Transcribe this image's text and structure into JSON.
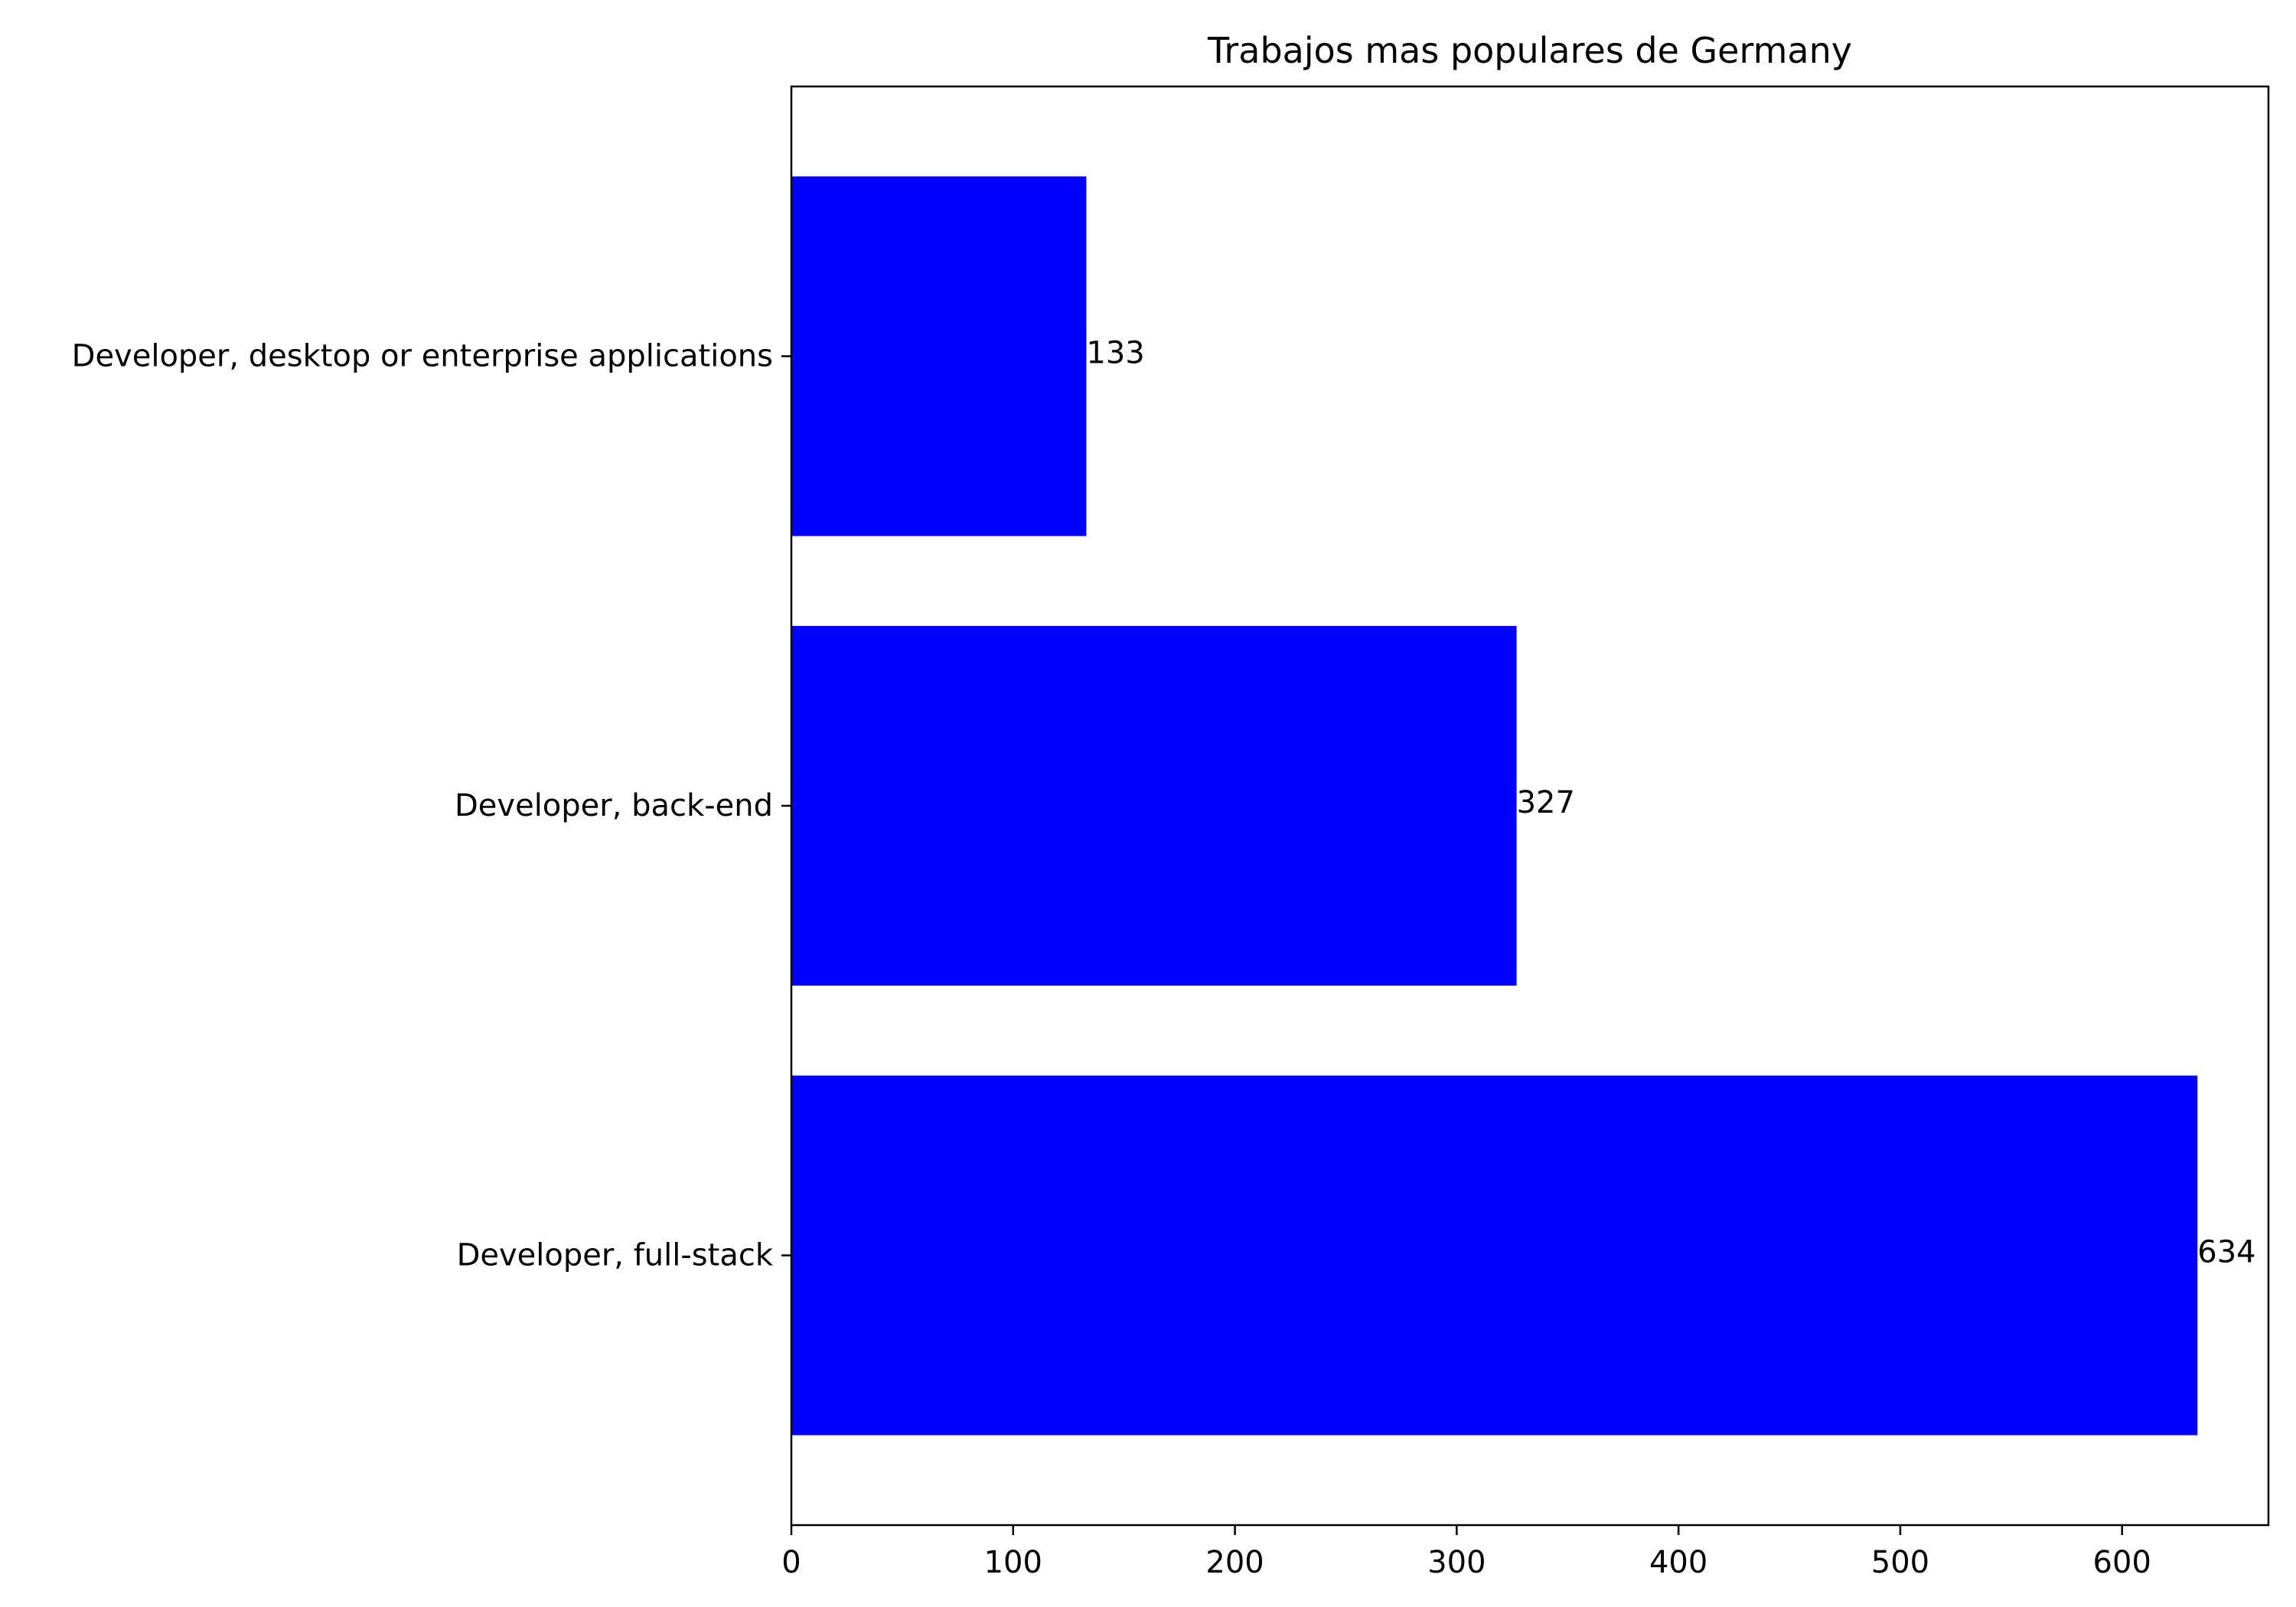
{
  "chart_data": {
    "type": "bar",
    "orientation": "horizontal",
    "title": "Trabajos mas populares de Germany",
    "xlabel": "",
    "ylabel": "",
    "categories": [
      "Developer, full-stack",
      "Developer, back-end",
      "Developer, desktop or enterprise applications"
    ],
    "values": [
      634,
      327,
      133
    ],
    "data_labels": [
      "634",
      "327",
      "133"
    ],
    "xlim": [
      0,
      666
    ],
    "xticks": [
      0,
      100,
      200,
      300,
      400,
      500,
      600
    ],
    "xtick_labels": [
      "0",
      "100",
      "200",
      "300",
      "400",
      "500",
      "600"
    ],
    "bar_color": "#0000ff",
    "grid": false,
    "legend": "none"
  }
}
